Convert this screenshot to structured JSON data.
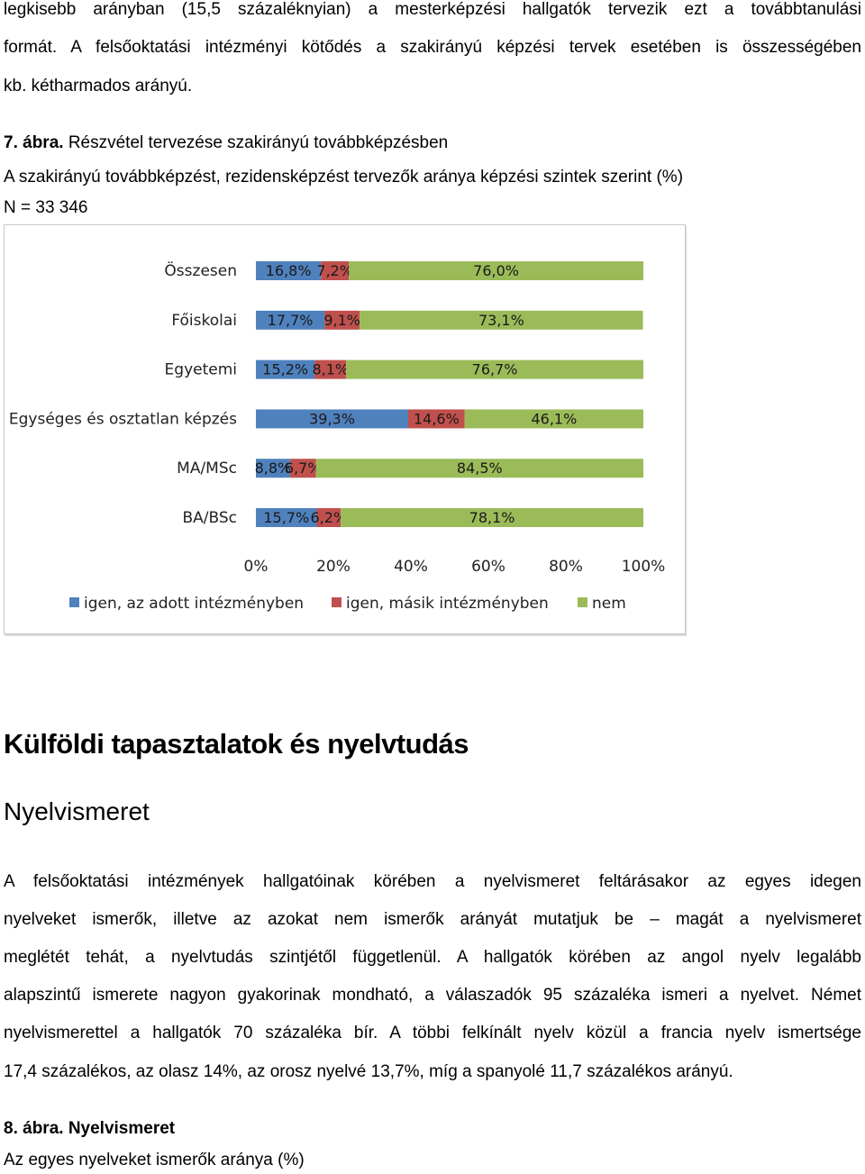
{
  "intro": {
    "line1": "legkisebb arányban (15,5 százaléknyian) a mesterképzési hallgatók tervezik ezt a továbbtanulási",
    "line2": "formát. A felsőoktatási intézményi kötődés a szakirányú képzési tervek esetében is összességében",
    "line3": "kb. kétharmados arányú."
  },
  "figure7": {
    "number": "7. ábra.",
    "title": "Részvétel tervezése szakirányú továbbképzésben",
    "subtitle": "A szakirányú továbbképzést, rezidensképzést tervezők aránya képzési szintek szerint (%)",
    "n_label": "N = 33 346"
  },
  "chart_data": {
    "type": "bar",
    "orientation": "horizontal",
    "stacked": true,
    "categories": [
      "Összesen",
      "Főiskolai",
      "Egyetemi",
      "Egységes és osztatlan képzés",
      "MA/MSc",
      "BA/BSc"
    ],
    "series": [
      {
        "name": "igen, az adott intézményben",
        "values": [
          16.8,
          17.7,
          15.2,
          39.3,
          8.8,
          15.7
        ],
        "labels": [
          "16,8%",
          "17,7%",
          "15,2%",
          "39,3%",
          "8,8%",
          "15,7%"
        ],
        "color": "#4f81bd"
      },
      {
        "name": "igen, másik intézményben",
        "values": [
          7.2,
          9.1,
          8.1,
          14.6,
          6.7,
          6.2
        ],
        "labels": [
          "7,2%",
          "9,1%",
          "8,1%",
          "14,6%",
          "6,7%",
          "6,2%"
        ],
        "color": "#c0504d"
      },
      {
        "name": "nem",
        "values": [
          76.0,
          73.1,
          76.7,
          46.1,
          84.5,
          78.1
        ],
        "labels": [
          "76,0%",
          "73,1%",
          "76,7%",
          "46,1%",
          "84,5%",
          "78,1%"
        ],
        "color": "#9bbb59"
      }
    ],
    "xlim": [
      0,
      100
    ],
    "x_ticks": [
      "0%",
      "20%",
      "40%",
      "60%",
      "80%",
      "100%"
    ],
    "legend_position": "bottom",
    "grid": false
  },
  "section": {
    "heading": "Külföldi tapasztalatok és nyelvtudás",
    "subheading": "Nyelvismeret"
  },
  "body": {
    "line1": "A felsőoktatási intézmények hallgatóinak körében a nyelvismeret feltárásakor az egyes idegen",
    "line2": "nyelveket ismerők, illetve az azokat nem ismerők arányát mutatjuk be – magát a nyelvismeret",
    "line3": "meglétét tehát, a nyelvtudás szintjétől függetlenül. A hallgatók körében az angol nyelv legalább",
    "line4": "alapszintű ismerete nagyon gyakorinak mondható, a válaszadók 95 százaléka ismeri a nyelvet. Német",
    "line5": "nyelvismerettel a hallgatók 70 százaléka bír. A többi felkínált nyelv közül a francia nyelv ismertsége",
    "line6": "17,4 százalékos, az olasz 14%, az orosz nyelvé 13,7%, míg a spanyolé 11,7 százalékos arányú."
  },
  "figure8": {
    "number": "8. ábra.",
    "title": "Nyelvismeret",
    "subtitle": "Az egyes nyelveket ismerők aránya (%)"
  }
}
